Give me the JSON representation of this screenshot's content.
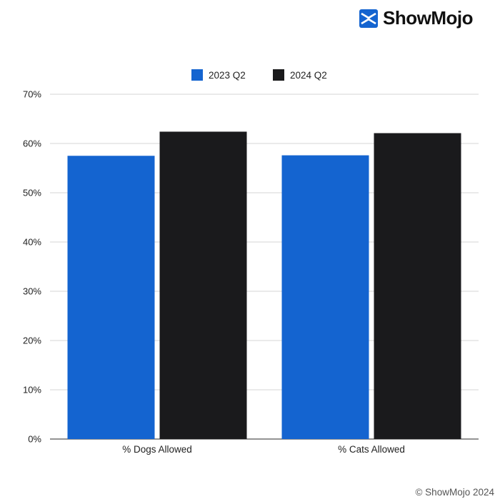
{
  "brand": {
    "name": "ShowMojo",
    "logo_icon": "showmojo-logo-icon",
    "accent": "#1464d0"
  },
  "footer": {
    "copyright": "© ShowMojo 2024"
  },
  "chart_data": {
    "type": "bar",
    "title": "",
    "xlabel": "",
    "ylabel": "",
    "categories": [
      "% Dogs Allowed",
      "% Cats Allowed"
    ],
    "series": [
      {
        "name": "2023 Q2",
        "color": "#1464d0",
        "values": [
          57.5,
          57.6
        ]
      },
      {
        "name": "2024 Q2",
        "color": "#1a1a1c",
        "values": [
          62.4,
          62.1
        ]
      }
    ],
    "ylim": [
      0,
      70
    ],
    "yticks": [
      0,
      10,
      20,
      30,
      40,
      50,
      60,
      70
    ],
    "ytick_labels": [
      "0%",
      "10%",
      "20%",
      "30%",
      "40%",
      "50%",
      "60%",
      "70%"
    ],
    "grid": true,
    "legend_position": "top-center"
  }
}
